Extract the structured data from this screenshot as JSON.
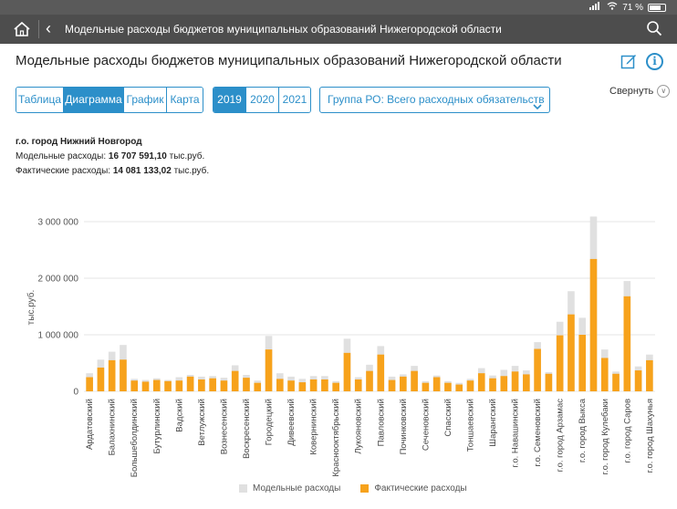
{
  "status": {
    "battery": "71 %"
  },
  "nav": {
    "title": "Модельные расходы бюджетов муниципальных образований Нижегородской области"
  },
  "page": {
    "title": "Модельные расходы бюджетов муниципальных образований Нижегородской области"
  },
  "controls": {
    "views": [
      "Таблица",
      "Диаграмма",
      "График",
      "Карта"
    ],
    "active_view": "Диаграмма",
    "years": [
      "2019",
      "2020",
      "2021"
    ],
    "active_year": "2019",
    "group_select": "Группа РО: Всего расходных обязательств",
    "collapse": "Свернуть"
  },
  "info": {
    "municipality": "г.о. город Нижний Новгород",
    "model_label": "Модельные расходы:",
    "model_value": "16 707 591,10",
    "actual_label": "Фактические расходы:",
    "actual_value": "14 081 133,02",
    "unit": "тыс.руб."
  },
  "colors": {
    "accent": "#2c8fc9",
    "model": "#e0e0e0",
    "actual": "#f7a21b"
  },
  "chart_data": {
    "type": "bar",
    "ylabel": "тыс.руб.",
    "ylim": [
      0,
      3000000
    ],
    "yticks": [
      "0",
      "1 000 000",
      "2 000 000",
      "3 000 000"
    ],
    "legend": [
      "Модельные расходы",
      "Фактические расходы"
    ],
    "legend_position": "bottom",
    "categories": [
      "Ардатовский",
      "",
      "Балахнинский",
      "",
      "Большеболдинский",
      "",
      "Бутурлинский",
      "",
      "Вадский",
      "",
      "Ветлужский",
      "",
      "Вознесенский",
      "",
      "Воскресенский",
      "",
      "Городецкий",
      "",
      "Дивеевский",
      "",
      "Ковернинский",
      "",
      "Краснооктябрьский",
      "",
      "Лукояновский",
      "",
      "Павловский",
      "",
      "Починковский",
      "",
      "Сеченовский",
      "",
      "Спасский",
      "",
      "Тоншаевский",
      "",
      "Шарангский",
      "",
      "г.о. Навашинский",
      "",
      "г.о. Семеновский",
      "",
      "г.о. город Арзамас",
      "",
      "г.о. город Выкса",
      "",
      "г.о. город Кулебаки",
      "",
      "г.о. город Саров",
      "",
      "г.о. город Шахунья"
    ],
    "series": [
      {
        "name": "Модельные расходы",
        "values": [
          320000,
          560000,
          700000,
          820000,
          220000,
          200000,
          230000,
          200000,
          250000,
          290000,
          260000,
          270000,
          240000,
          460000,
          290000,
          190000,
          980000,
          320000,
          260000,
          220000,
          270000,
          270000,
          180000,
          930000,
          250000,
          470000,
          800000,
          260000,
          300000,
          450000,
          180000,
          280000,
          180000,
          150000,
          220000,
          410000,
          280000,
          380000,
          450000,
          370000,
          870000,
          340000,
          1230000,
          1770000,
          1300000,
          3090000,
          740000,
          350000,
          1950000,
          440000,
          650000
        ]
      },
      {
        "name": "Фактические расходы",
        "values": [
          250000,
          420000,
          550000,
          560000,
          190000,
          170000,
          200000,
          180000,
          190000,
          260000,
          210000,
          230000,
          190000,
          360000,
          240000,
          150000,
          740000,
          220000,
          190000,
          160000,
          210000,
          210000,
          150000,
          680000,
          210000,
          360000,
          650000,
          200000,
          260000,
          360000,
          150000,
          250000,
          150000,
          120000,
          190000,
          320000,
          230000,
          270000,
          350000,
          300000,
          750000,
          310000,
          990000,
          1360000,
          1000000,
          2340000,
          590000,
          310000,
          1680000,
          370000,
          550000
        ]
      }
    ]
  }
}
